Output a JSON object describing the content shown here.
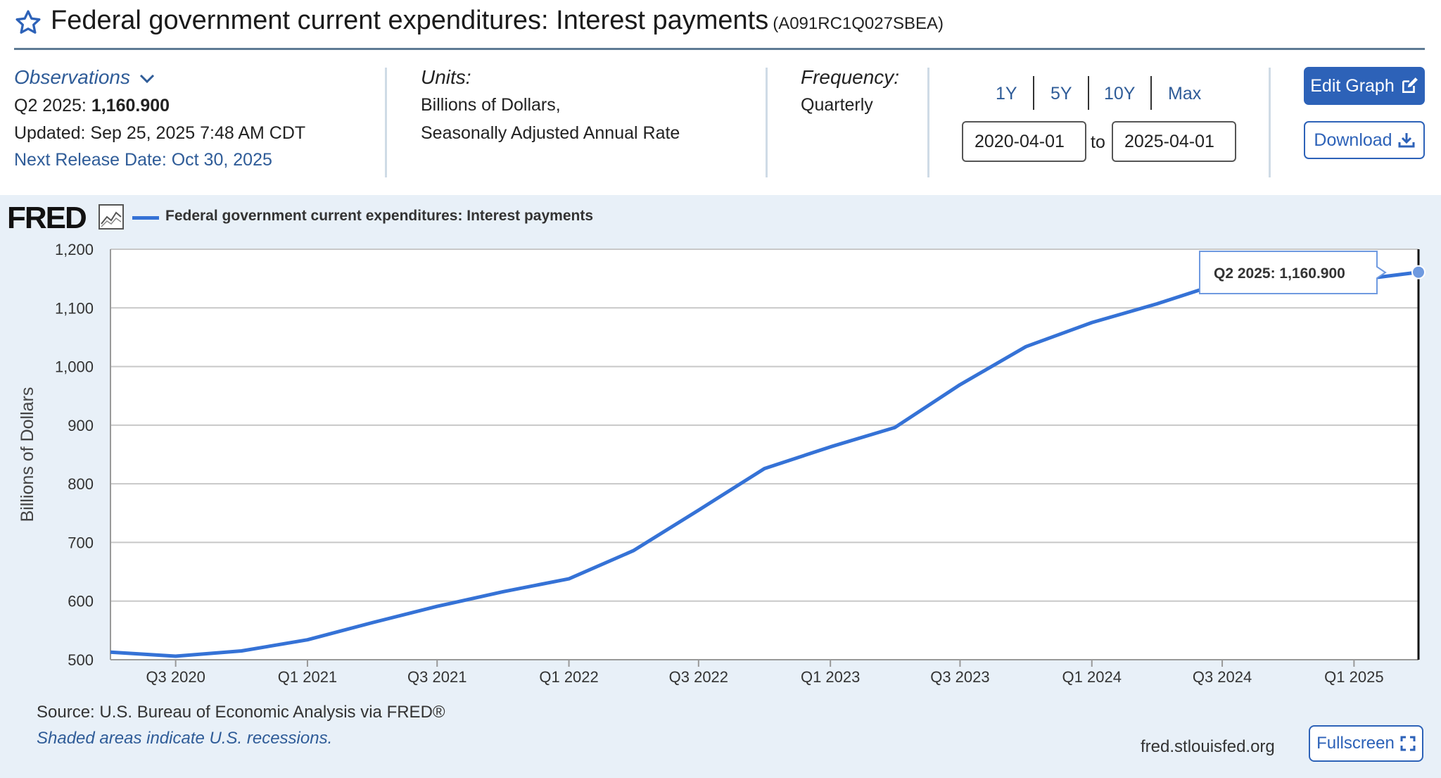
{
  "header": {
    "title": "Federal government current expenditures: Interest payments",
    "series_id": "(A091RC1Q027SBEA)"
  },
  "observations": {
    "toggle_label": "Observations",
    "latest_period": "Q2 2025:",
    "latest_value": "1,160.900",
    "updated": "Updated: Sep 25, 2025 7:48 AM CDT",
    "next_release": "Next Release Date: Oct 30, 2025"
  },
  "units": {
    "label": "Units:",
    "line1": "Billions of Dollars,",
    "line2": "Seasonally Adjusted Annual Rate"
  },
  "frequency": {
    "label": "Frequency:",
    "value": "Quarterly"
  },
  "range_buttons": [
    "1Y",
    "5Y",
    "10Y",
    "Max"
  ],
  "date_range": {
    "start": "2020-04-01",
    "to_label": "to",
    "end": "2025-04-01"
  },
  "buttons": {
    "edit_graph": "Edit Graph",
    "download": "Download",
    "fullscreen": "Fullscreen"
  },
  "icons": [
    "star-icon",
    "chevron-down-icon",
    "edit-icon",
    "download-icon",
    "fred-graph-icon",
    "fullscreen-icon"
  ],
  "logo_text": "FRED",
  "legend_label": "Federal government current expenditures: Interest payments",
  "tooltip": {
    "period": "Q2 2025:",
    "value": "1,160.900"
  },
  "footer": {
    "source": "Source: U.S. Bureau of Economic Analysis via FRED®",
    "recession_note": "Shaded areas indicate U.S. recessions.",
    "site": "fred.stlouisfed.org"
  },
  "colors": {
    "line": "#3572d6",
    "accent": "#2d62b8",
    "panel_bg": "#e8f0f8"
  },
  "chart_data": {
    "type": "line",
    "title": "",
    "xlabel": "",
    "ylabel": "Billions of Dollars",
    "ylim": [
      500,
      1200
    ],
    "yticks": [
      500,
      600,
      700,
      800,
      900,
      1000,
      1100,
      1200
    ],
    "ytick_labels": [
      "500",
      "600",
      "700",
      "800",
      "900",
      "1,000",
      "1,100",
      "1,200"
    ],
    "grid": true,
    "legend_position": "top-left",
    "x_tick_labels": [
      "Q3 2020",
      "Q1 2021",
      "Q3 2021",
      "Q1 2022",
      "Q3 2022",
      "Q1 2023",
      "Q3 2023",
      "Q1 2024",
      "Q3 2024",
      "Q1 2025"
    ],
    "series": [
      {
        "name": "Federal government current expenditures: Interest payments",
        "x": [
          "2020-04-01",
          "2020-07-01",
          "2020-10-01",
          "2021-01-01",
          "2021-04-01",
          "2021-07-01",
          "2021-10-01",
          "2022-01-01",
          "2022-04-01",
          "2022-07-01",
          "2022-10-01",
          "2023-01-01",
          "2023-04-01",
          "2023-07-01",
          "2023-10-01",
          "2024-01-01",
          "2024-04-01",
          "2024-07-01",
          "2024-10-01",
          "2025-01-01",
          "2025-04-01"
        ],
        "values": [
          513,
          506,
          515,
          534,
          563,
          591,
          616,
          638,
          686,
          755,
          826,
          863,
          896,
          969,
          1034,
          1075,
          1107,
          1143,
          1138,
          1147,
          1160.9
        ]
      }
    ]
  }
}
